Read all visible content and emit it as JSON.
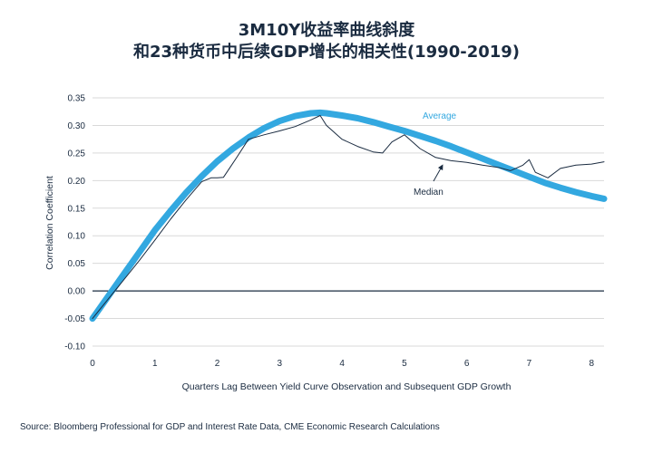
{
  "title": {
    "line1": "3M10Y收益率曲线斜度",
    "line2": "和23种货币中后续GDP增长的相关性(1990-2019)"
  },
  "source": "Source: Bloomberg Professional for GDP and Interest Rate Data, CME Economic Research Calculations",
  "colors": {
    "average": "#33a8e0",
    "median": "#1a2b40",
    "grid": "#d9d9d9",
    "text": "#1a2b40",
    "zero_line": "#1a2b40"
  },
  "chart_data": {
    "type": "line",
    "xlabel": "Quarters Lag Between Yield Curve Observation and Subsequent GDP Growth",
    "ylabel": "Correlation Coefficient",
    "xlim": [
      0,
      8.2
    ],
    "ylim": [
      -0.1,
      0.35
    ],
    "x_ticks": [
      "0",
      "1",
      "2",
      "3",
      "4",
      "5",
      "6",
      "7",
      "8"
    ],
    "y_ticks": [
      "-0.10",
      "-0.05",
      "0.00",
      "0.05",
      "0.10",
      "0.15",
      "0.20",
      "0.25",
      "0.30",
      "0.35"
    ],
    "grid": "horizontal",
    "series": [
      {
        "name": "Average",
        "color": "#33a8e0",
        "x": [
          0,
          0.25,
          0.5,
          0.75,
          1,
          1.25,
          1.5,
          1.75,
          2,
          2.25,
          2.5,
          2.75,
          3,
          3.25,
          3.5,
          3.65,
          3.75,
          4,
          4.25,
          4.5,
          4.75,
          5,
          5.25,
          5.5,
          5.75,
          6,
          6.25,
          6.5,
          6.75,
          7,
          7.25,
          7.5,
          7.75,
          8,
          8.2
        ],
        "values": [
          -0.05,
          -0.01,
          0.03,
          0.07,
          0.11,
          0.145,
          0.178,
          0.208,
          0.235,
          0.258,
          0.278,
          0.295,
          0.308,
          0.317,
          0.322,
          0.323,
          0.322,
          0.318,
          0.313,
          0.306,
          0.298,
          0.29,
          0.281,
          0.272,
          0.262,
          0.251,
          0.24,
          0.229,
          0.218,
          0.207,
          0.196,
          0.187,
          0.179,
          0.172,
          0.167
        ]
      },
      {
        "name": "Median",
        "color": "#1a2b40",
        "x": [
          0,
          0.25,
          0.5,
          0.75,
          1,
          1.25,
          1.5,
          1.75,
          1.9,
          2.0,
          2.1,
          2.3,
          2.5,
          2.75,
          3,
          3.25,
          3.5,
          3.65,
          3.75,
          4,
          4.25,
          4.5,
          4.65,
          4.8,
          5,
          5.25,
          5.5,
          5.75,
          6,
          6.25,
          6.5,
          6.7,
          6.9,
          7.0,
          7.1,
          7.3,
          7.5,
          7.75,
          8,
          8.2
        ],
        "values": [
          -0.05,
          -0.015,
          0.02,
          0.055,
          0.092,
          0.13,
          0.165,
          0.198,
          0.205,
          0.205,
          0.206,
          0.24,
          0.275,
          0.283,
          0.29,
          0.298,
          0.31,
          0.318,
          0.3,
          0.275,
          0.262,
          0.252,
          0.25,
          0.27,
          0.283,
          0.258,
          0.242,
          0.236,
          0.233,
          0.228,
          0.224,
          0.218,
          0.228,
          0.238,
          0.215,
          0.205,
          0.222,
          0.228,
          0.23,
          0.234
        ]
      }
    ],
    "annotations": [
      {
        "text": "Average",
        "series": "Average"
      },
      {
        "text": "Median",
        "series": "Median"
      }
    ]
  }
}
